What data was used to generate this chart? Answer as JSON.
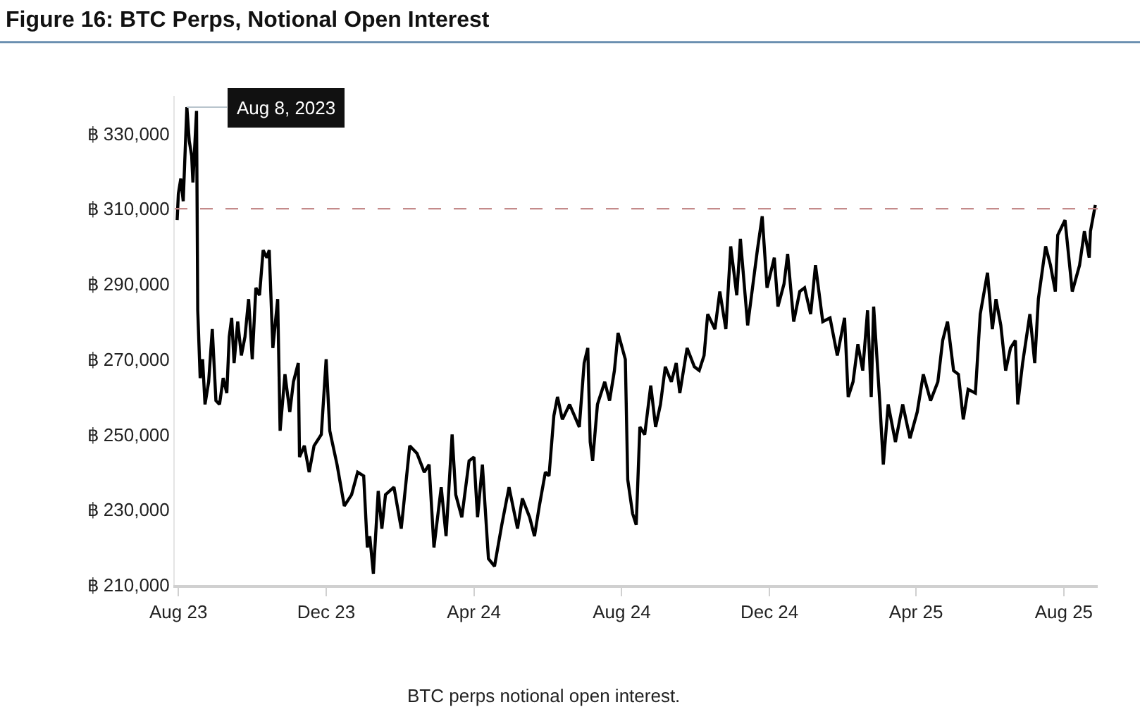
{
  "chart_data": {
    "type": "line",
    "title": "Figure 16: BTC Perps, Notional Open Interest",
    "x": [
      "2023-07-31",
      "2023-08-01",
      "2023-08-03",
      "2023-08-05",
      "2023-08-08",
      "2023-08-10",
      "2023-08-12",
      "2023-08-13",
      "2023-08-16",
      "2023-08-17",
      "2023-08-19",
      "2023-08-21",
      "2023-08-23",
      "2023-08-26",
      "2023-08-29",
      "2023-09-01",
      "2023-09-04",
      "2023-09-07",
      "2023-09-10",
      "2023-09-12",
      "2023-09-14",
      "2023-09-16",
      "2023-09-19",
      "2023-09-22",
      "2023-09-25",
      "2023-09-28",
      "2023-10-01",
      "2023-10-04",
      "2023-10-07",
      "2023-10-10",
      "2023-10-13",
      "2023-10-15",
      "2023-10-18",
      "2023-10-22",
      "2023-10-24",
      "2023-10-28",
      "2023-11-01",
      "2023-11-04",
      "2023-11-08",
      "2023-11-09",
      "2023-11-13",
      "2023-11-17",
      "2023-11-21",
      "2023-11-27",
      "2023-12-01",
      "2023-12-04",
      "2023-12-10",
      "2023-12-16",
      "2023-12-22",
      "2023-12-27",
      "2024-01-01",
      "2024-01-04",
      "2024-01-06",
      "2024-01-09",
      "2024-01-13",
      "2024-01-16",
      "2024-01-19",
      "2024-01-26",
      "2024-02-01",
      "2024-02-08",
      "2024-02-14",
      "2024-02-20",
      "2024-02-24",
      "2024-02-28",
      "2024-03-05",
      "2024-03-09",
      "2024-03-14",
      "2024-03-17",
      "2024-03-22",
      "2024-03-28",
      "2024-04-01",
      "2024-04-04",
      "2024-04-08",
      "2024-04-13",
      "2024-04-18",
      "2024-04-24",
      "2024-04-30",
      "2024-05-07",
      "2024-05-11",
      "2024-05-17",
      "2024-05-21",
      "2024-05-25",
      "2024-05-30",
      "2024-06-02",
      "2024-06-06",
      "2024-06-09",
      "2024-06-13",
      "2024-06-19",
      "2024-06-27",
      "2024-07-01",
      "2024-07-04",
      "2024-07-06",
      "2024-07-08",
      "2024-07-12",
      "2024-07-18",
      "2024-07-22",
      "2024-07-26",
      "2024-07-29",
      "2024-08-04",
      "2024-08-06",
      "2024-08-10",
      "2024-08-13",
      "2024-08-16",
      "2024-08-20",
      "2024-08-25",
      "2024-08-29",
      "2024-09-02",
      "2024-09-06",
      "2024-09-11",
      "2024-09-15",
      "2024-09-18",
      "2024-09-24",
      "2024-09-30",
      "2024-10-04",
      "2024-10-08",
      "2024-10-11",
      "2024-10-17",
      "2024-10-21",
      "2024-10-26",
      "2024-10-30",
      "2024-11-04",
      "2024-11-07",
      "2024-11-13",
      "2024-11-17",
      "2024-11-21",
      "2024-11-25",
      "2024-11-29",
      "2024-12-05",
      "2024-12-08",
      "2024-12-13",
      "2024-12-16",
      "2024-12-21",
      "2024-12-26",
      "2024-12-30",
      "2025-01-04",
      "2025-01-08",
      "2025-01-14",
      "2025-01-20",
      "2025-01-26",
      "2025-02-01",
      "2025-02-04",
      "2025-02-08",
      "2025-02-12",
      "2025-02-16",
      "2025-02-20",
      "2025-02-23",
      "2025-02-25",
      "2025-03-02",
      "2025-03-05",
      "2025-03-09",
      "2025-03-15",
      "2025-03-21",
      "2025-03-27",
      "2025-04-02",
      "2025-04-07",
      "2025-04-13",
      "2025-04-19",
      "2025-04-23",
      "2025-04-27",
      "2025-05-02",
      "2025-05-06",
      "2025-05-10",
      "2025-05-14",
      "2025-05-20",
      "2025-05-24",
      "2025-05-30",
      "2025-06-03",
      "2025-06-06",
      "2025-06-10",
      "2025-06-14",
      "2025-06-18",
      "2025-06-22",
      "2025-06-24",
      "2025-06-28",
      "2025-07-04",
      "2025-07-08",
      "2025-07-11",
      "2025-07-17",
      "2025-07-21",
      "2025-07-25",
      "2025-07-27",
      "2025-08-02",
      "2025-08-08",
      "2025-08-14",
      "2025-08-18",
      "2025-08-22",
      "2025-08-23",
      "2025-08-27"
    ],
    "series": [
      {
        "color": "#000000",
        "values": [
          307000,
          314000,
          318000,
          312000,
          337000,
          328000,
          324000,
          317000,
          336000,
          283000,
          265000,
          270000,
          258000,
          264000,
          278000,
          259000,
          258000,
          265000,
          261000,
          276000,
          281000,
          269000,
          280000,
          271000,
          276000,
          286000,
          270000,
          289000,
          287000,
          299000,
          297000,
          299000,
          273000,
          286000,
          251000,
          266000,
          256000,
          264000,
          269000,
          244000,
          247000,
          240000,
          247000,
          250000,
          270000,
          251000,
          242000,
          231000,
          234000,
          240000,
          239000,
          220000,
          223000,
          213000,
          235000,
          225000,
          234000,
          236000,
          225000,
          247000,
          245000,
          240000,
          242000,
          220000,
          236000,
          223000,
          250000,
          234000,
          228000,
          243000,
          244000,
          228000,
          242000,
          217000,
          215000,
          226000,
          236000,
          225000,
          233000,
          228000,
          223000,
          231000,
          240000,
          239000,
          255000,
          260000,
          254000,
          258000,
          252000,
          269000,
          273000,
          248000,
          243000,
          258000,
          264000,
          259000,
          267000,
          277000,
          270000,
          238000,
          229000,
          226000,
          252000,
          250000,
          263000,
          252000,
          258000,
          268000,
          264000,
          269000,
          261000,
          273000,
          268000,
          267000,
          271000,
          282000,
          278000,
          288000,
          278000,
          300000,
          287000,
          302000,
          279000,
          289000,
          299000,
          308000,
          289000,
          297000,
          284000,
          290000,
          298000,
          280000,
          288000,
          289000,
          282000,
          295000,
          280000,
          281000,
          271000,
          281000,
          260000,
          264000,
          274000,
          267000,
          283000,
          260000,
          284000,
          259000,
          242000,
          258000,
          248000,
          258000,
          249000,
          256000,
          266000,
          259000,
          264000,
          275000,
          280000,
          267000,
          266000,
          254000,
          262000,
          261000,
          282000,
          293000,
          278000,
          286000,
          279000,
          267000,
          273000,
          275000,
          258000,
          269000,
          282000,
          269000,
          286000,
          300000,
          295000,
          288000,
          303000,
          307000,
          288000,
          295000,
          304000,
          297000,
          304000,
          311000
        ]
      }
    ],
    "xlim": [
      "2023-07-29",
      "2025-08-29"
    ],
    "xticks": [
      {
        "value": "2023-08-01",
        "label": "Aug 23"
      },
      {
        "value": "2023-12-01",
        "label": "Dec 23"
      },
      {
        "value": "2024-04-01",
        "label": "Apr 24"
      },
      {
        "value": "2024-08-01",
        "label": "Aug 24"
      },
      {
        "value": "2024-12-01",
        "label": "Dec 24"
      },
      {
        "value": "2025-04-01",
        "label": "Apr 25"
      },
      {
        "value": "2025-08-01",
        "label": "Aug 25"
      }
    ],
    "ylim": [
      210000,
      340000
    ],
    "yticks": [
      {
        "value": 210000,
        "label": "฿ 210,000"
      },
      {
        "value": 230000,
        "label": "฿ 230,000"
      },
      {
        "value": 250000,
        "label": "฿ 250,000"
      },
      {
        "value": 270000,
        "label": "฿ 270,000"
      },
      {
        "value": 290000,
        "label": "฿ 290,000"
      },
      {
        "value": 310000,
        "label": "฿ 310,000"
      },
      {
        "value": 330000,
        "label": "฿ 330,000"
      }
    ],
    "ref_lines": [
      {
        "axis": "y",
        "value": 310000,
        "color": "#c48a8a",
        "line_style": "dashed"
      }
    ],
    "annotations": [
      {
        "text": "Aug 8, 2023",
        "x": "2023-08-08",
        "y": 337000
      },
      "BTC perps notional open interest."
    ],
    "marker": "none",
    "line_style": "solid"
  }
}
